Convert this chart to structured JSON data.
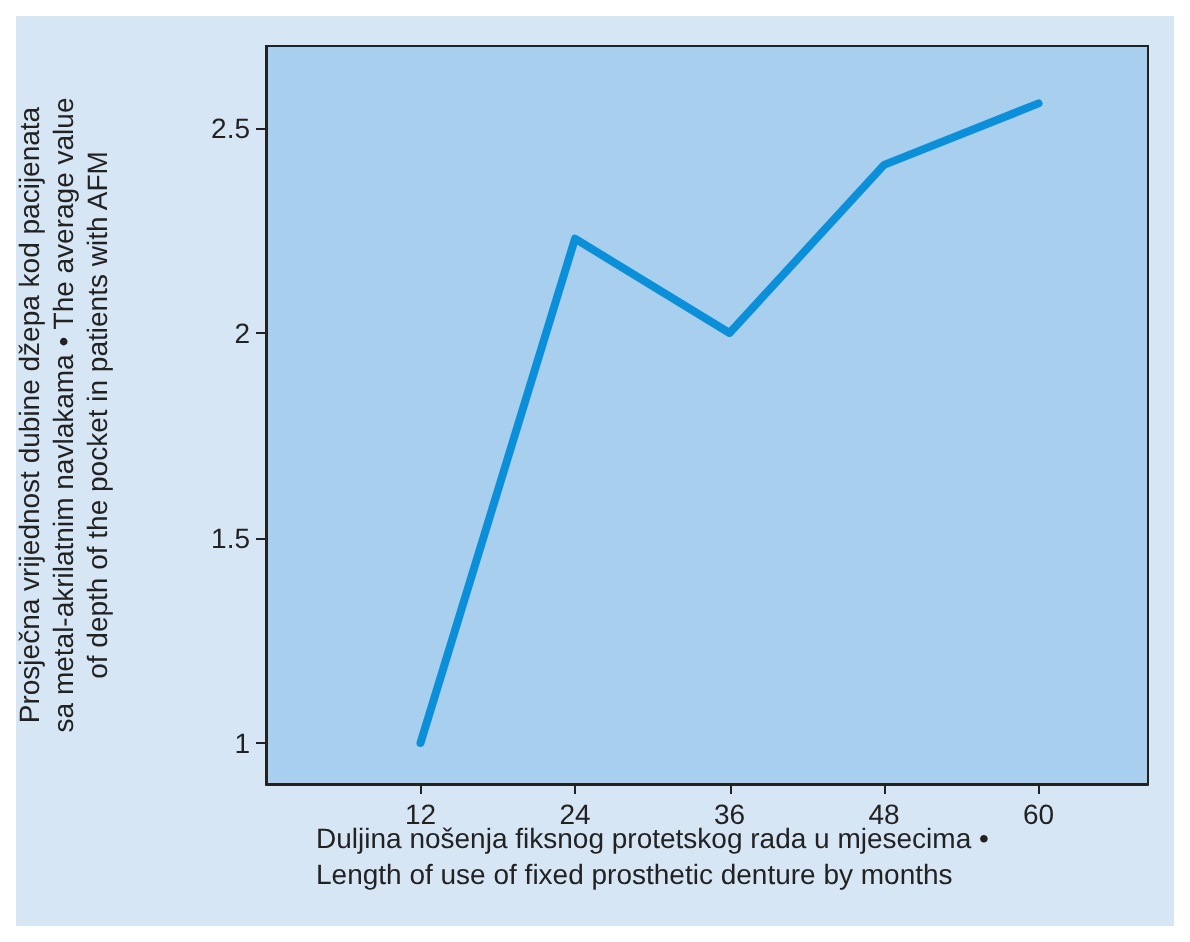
{
  "chart_data": {
    "type": "line",
    "xlabel": "Duljina nošenja fiksnog protetskog rada u mjesecima •\nLength of use of fixed prosthetic denture by months",
    "ylabel": "Prosječna vrijednost dubine džepa kod pacijenata\nsa metal-akrilatnim navlakama • The average value\nof depth of the pocket in patients with AFM",
    "x": [
      12,
      24,
      36,
      48,
      60
    ],
    "series": [
      {
        "color": "#0a8fd8",
        "values": [
          1.0,
          2.23,
          2.0,
          2.41,
          2.56
        ]
      }
    ],
    "xlim": [
      0,
      68.5
    ],
    "xticks": [
      12,
      24,
      36,
      48,
      60
    ],
    "ylim": [
      0.9,
      2.7
    ],
    "yticks": [
      1,
      1.5,
      2,
      2.5
    ],
    "grid": false,
    "marker": "none",
    "line_style": "solid"
  }
}
